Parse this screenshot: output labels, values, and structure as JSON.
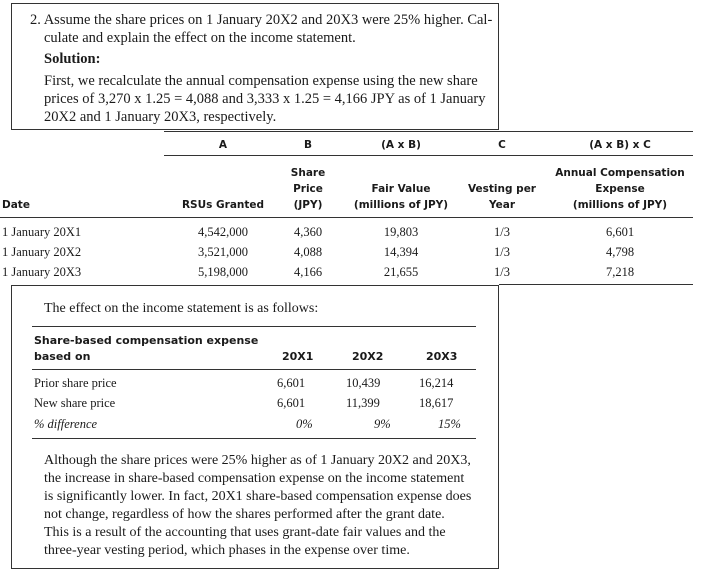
{
  "question": {
    "line1": "2.  Assume the share prices on 1 January 20X2 and 20X3 were 25% higher. Cal-",
    "line2": "culate and explain the effect on the income statement.",
    "solution_label": "Solution:",
    "line3": "First, we recalculate the annual compensation expense using the new share",
    "line4": "prices of 3,270 x 1.25 = 4,088 and 3,333 x 1.25 = 4,166 JPY as of 1 January",
    "line5": "20X2 and 1 January 20X3, respectively."
  },
  "table": {
    "col_letters": [
      "A",
      "B",
      "(A x B)",
      "C",
      "(A x B) x C"
    ],
    "headers": {
      "date": "Date",
      "rsus": "RSUs Granted",
      "price": [
        "Share",
        "Price",
        "(JPY)"
      ],
      "fair_value": [
        "Fair Value",
        "(millions of JPY)"
      ],
      "vesting": [
        "Vesting per",
        "Year"
      ],
      "annual": [
        "Annual Compensation",
        "Expense",
        "(millions of JPY)"
      ]
    },
    "rows": [
      {
        "date": "1 January 20X1",
        "rsus": "4,542,000",
        "price": "4,360",
        "fair_value": "19,803",
        "vesting": "1/3",
        "annual": "6,601"
      },
      {
        "date": "1 January 20X2",
        "rsus": "3,521,000",
        "price": "4,088",
        "fair_value": "14,394",
        "vesting": "1/3",
        "annual": "4,798"
      },
      {
        "date": "1 January 20X3",
        "rsus": "5,198,000",
        "price": "4,166",
        "fair_value": "21,655",
        "vesting": "1/3",
        "annual": "7,218"
      }
    ]
  },
  "effect": {
    "intro": "The effect on the income statement is as follows:",
    "header_label": [
      "Share-based compensation expense",
      "based on"
    ],
    "years": [
      "20X1",
      "20X2",
      "20X3"
    ],
    "rows": [
      {
        "label": "Prior share price",
        "values": [
          "6,601",
          "10,439",
          "16,214"
        ]
      },
      {
        "label": "New share price",
        "values": [
          "6,601",
          "11,399",
          "18,617"
        ]
      },
      {
        "label": "% difference",
        "values": [
          "0%",
          "9%",
          "15%"
        ]
      }
    ],
    "para": [
      "Although the share prices were 25% higher as of 1 January 20X2 and 20X3,",
      "the increase in share-based compensation expense on the income statement",
      "is significantly lower. In fact, 20X1 share-based compensation expense does",
      "not change, regardless of how the shares performed after the grant date.",
      "This is a result of the accounting that uses grant-date fair values and the",
      "three-year vesting period, which phases in the expense over time."
    ]
  }
}
